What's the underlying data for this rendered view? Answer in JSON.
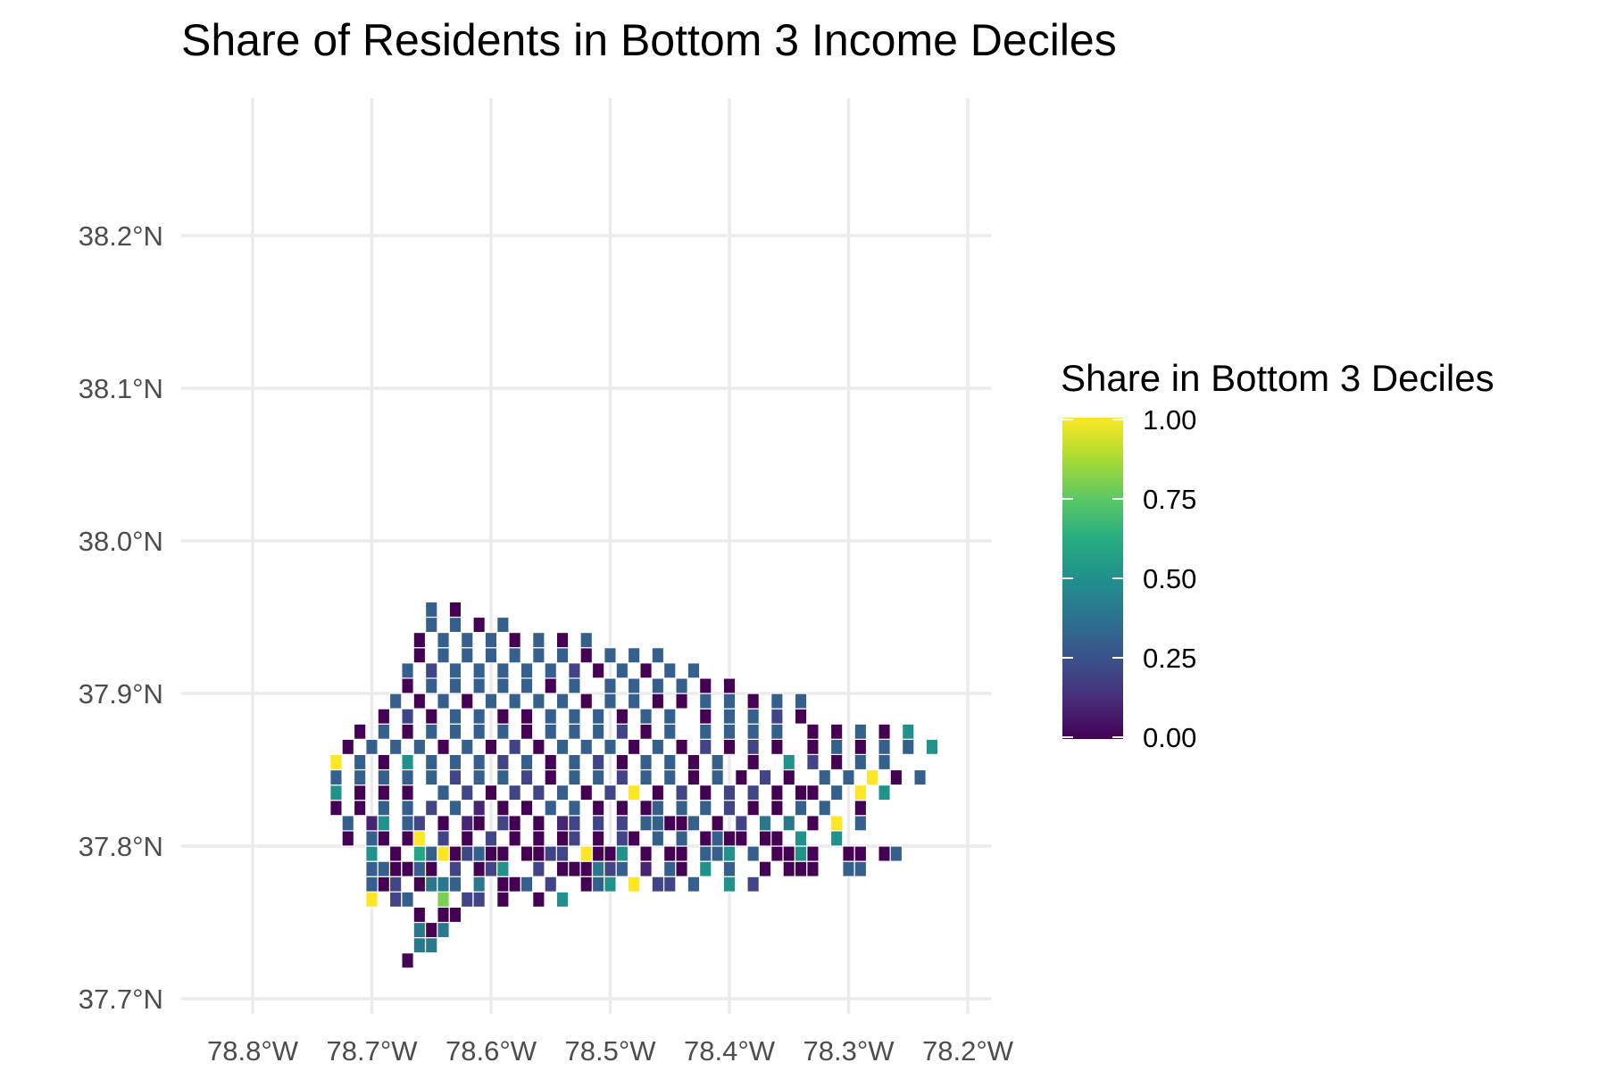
{
  "chart_data": {
    "type": "heatmap",
    "subtype": "spatial-grid-map",
    "title": "Share of Residents in Bottom 3 Income Deciles",
    "xlabel": "",
    "ylabel": "",
    "xlim": [
      -78.86,
      -78.18
    ],
    "ylim": [
      37.69,
      38.29
    ],
    "x_ticks": [
      -78.8,
      -78.7,
      -78.6,
      -78.5,
      -78.4,
      -78.3,
      -78.2
    ],
    "x_tick_labels": [
      "78.8°W",
      "78.7°W",
      "78.6°W",
      "78.5°W",
      "78.4°W",
      "78.3°W",
      "78.2°W"
    ],
    "y_ticks": [
      37.7,
      37.8,
      37.9,
      38.0,
      38.1,
      38.2
    ],
    "y_tick_labels": [
      "37.7°N",
      "37.8°N",
      "37.9°N",
      "38.0°N",
      "38.1°N",
      "38.2°N"
    ],
    "grid": true,
    "cell_size_deg": 0.01,
    "grid_origin": {
      "lon": -78.83,
      "lat": 37.725
    },
    "legend": {
      "title": "Share in Bottom 3 Deciles",
      "placement": "right",
      "colormap": "viridis",
      "range": [
        0,
        1
      ],
      "ticks": [
        0,
        0.25,
        0.5,
        0.75,
        1
      ],
      "tick_labels": [
        "0.00",
        "0.25",
        "0.50",
        "0.75",
        "1.00"
      ],
      "colors": [
        "#440154",
        "#3b528b",
        "#21908c",
        "#5dc863",
        "#fde725"
      ]
    },
    "value_code": "Cell values by grid row (latitude index from grid_origin) and column start (longitude index from grid_origin). Each character is one cell: 0=0.00, 1=0.10, 2=0.20, 3=0.30, 4=0.40, 5=0.50, 6=0.60, 7=0.70, 8=0.80, 9=0.90, A=1.00, '.'=no data.",
    "rows": [
      {
        "r": 0,
        "start": 16,
        "cells": "0"
      },
      {
        "r": 1,
        "start": 17,
        "cells": "44"
      },
      {
        "r": 2,
        "start": 17,
        "cells": "404"
      },
      {
        "r": 3,
        "start": 17,
        "cells": "0.00"
      },
      {
        "r": 4,
        "start": 13,
        "cells": "A.23..8.22.0..0.5"
      },
      {
        "r": 5,
        "start": 13,
        "cells": "302.0443.4.003.2..035.A.22.3..5.2"
      },
      {
        "r": 6,
        "start": 13,
        "cells": "330030.2.025..2.000423.1.30.5.3..0.000..33"
      },
      {
        "r": 7,
        "start": 13,
        "cells": "5.0.63A02300.0022.A005.0.00.335.3.0050..00.03"
      },
      {
        "r": 8,
        "start": 11,
        "cells": "0.30.0A.2.0.2.0.0.02.0.20.3.3.0300.00.5..5"
      },
      {
        "r": 9,
        "start": 11,
        "cells": "3.15.32.0.10.20.0.12.2.2.33003.0.2.4.4.0.A.3"
      },
      {
        "r": 10,
        "start": 10,
        "cells": "0.0.3.3.2.3.1.0.0.3.3.0.0.03.3.3.2.0.0.3.3..0"
      },
      {
        "r": 11,
        "start": 10,
        "cells": "5.0.0.0..3.2.0.2.2.3.0.2.A.0.2.0.2.2.0.00.3.A.5"
      },
      {
        "r": 12,
        "start": 10,
        "cells": "3.3.3.3.3.2.3.3.2.0.3.3.2.3.3.0.3.0.2.0..3.3.A.0.3"
      },
      {
        "r": 13,
        "start": 10,
        "cells": "A.3.0.5.3.3.3.2.3.0.3.2.0.3.3.0.3..0..5.2.0.3.3"
      },
      {
        "r": 14,
        "start": 11,
        "cells": "0.3.3.3.0.3.0.2.0.3.3.3.0.3.0.2.0.2.0..0.3.0.3.3.5"
      },
      {
        "r": 15,
        "start": 12,
        "cells": "0.3.0.3.3.3.3.0.3.3.3.2.0.3..3.3.3.3..0.0.3.0.5"
      },
      {
        "r": 16,
        "start": 14,
        "cells": "0.2.0.3.3.0.0.3.3.3.0.3.3..0.3.3.2.0"
      },
      {
        "r": 17,
        "start": 15,
        "cells": "3.0.3.0.3.3.3.3.0.3.3.0.0.3.3.0.3.3"
      },
      {
        "r": 18,
        "start": 16,
        "cells": "0.3.3.3.3.3.0.3..3.3.3.3.0.0"
      },
      {
        "r": 19,
        "start": 16,
        "cells": "3.2.3.3.3.3.3.2.0.3.0.3.3"
      },
      {
        "r": 20,
        "start": 17,
        "cells": "0.3.3.3.3.3.3.0.3.3.3"
      },
      {
        "r": 21,
        "start": 17,
        "cells": "0.3.3.3.0.3.0.3"
      },
      {
        "r": 22,
        "start": 18,
        "cells": "3.3.0.3"
      },
      {
        "r": 23,
        "start": 18,
        "cells": "3.0"
      }
    ]
  }
}
